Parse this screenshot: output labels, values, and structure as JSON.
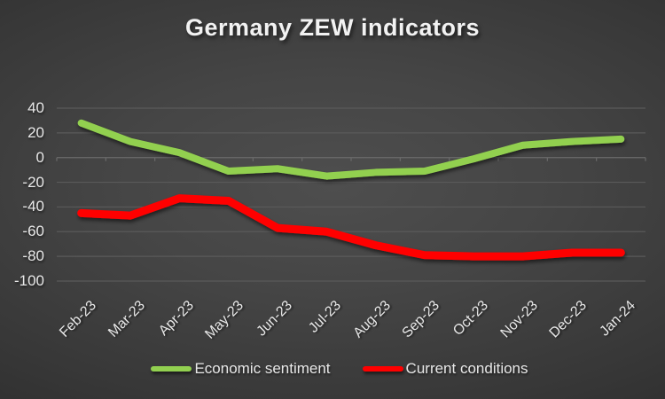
{
  "title": "Germany ZEW indicators",
  "chart_data": {
    "type": "line",
    "title": "Germany ZEW indicators",
    "categories": [
      "Feb-23",
      "Mar-23",
      "Apr-23",
      "May-23",
      "Jun-23",
      "Jul-23",
      "Aug-23",
      "Sep-23",
      "Oct-23",
      "Nov-23",
      "Dec-23",
      "Jan-24"
    ],
    "series": [
      {
        "name": "Economic sentiment",
        "color": "#92d050",
        "values": [
          28,
          13,
          4,
          -11,
          -9,
          -15,
          -12,
          -11,
          -1,
          10,
          13,
          15
        ]
      },
      {
        "name": "Current conditions",
        "color": "#ff0000",
        "values": [
          -45,
          -47,
          -33,
          -35,
          -57,
          -60,
          -71,
          -79,
          -80,
          -80,
          -77,
          -77
        ]
      }
    ],
    "yticks": [
      40,
      20,
      0,
      -20,
      -40,
      -60,
      -80,
      -100
    ],
    "ylim": [
      -100,
      40
    ],
    "xlabel": "",
    "ylabel": "",
    "grid": true,
    "legend_position": "bottom"
  },
  "colors": {
    "background_center": "#4d4d4d",
    "background_edge": "#232323",
    "gridline": "#5a5a5a",
    "zero_axis": "#6b6b6b",
    "text": "#e8e8e8",
    "series_green": "#92d050",
    "series_red": "#ff0000"
  }
}
